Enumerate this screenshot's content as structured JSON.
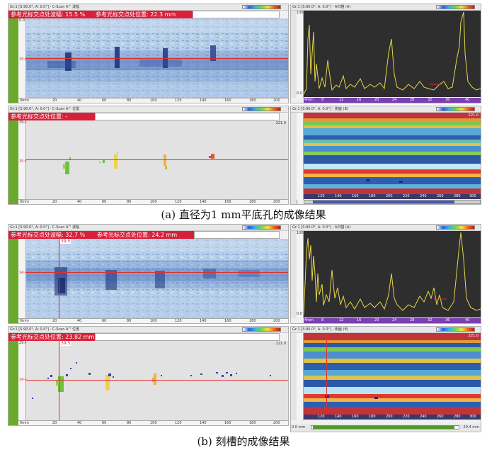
{
  "caption_a": "(a) 直径为1 mm平底孔的成像结果",
  "caption_b": "(b) 刻槽的成像结果",
  "panel_a_cscan": {
    "title": "Gr:1 [S:90.0°, A: 0.0°] - C-Scan A^ 波幅",
    "info_amp": "参考光标交点处波幅: 15.5 %",
    "info_pos": "参考光标交点处位置: 22.3 mm",
    "y_ref": "15.6",
    "y_top": "0.0",
    "x_start": "0mm",
    "x_ticks": [
      "20",
      "40",
      "60",
      "80",
      "100",
      "120",
      "140",
      "160",
      "180",
      "200"
    ]
  },
  "panel_a_ascan": {
    "title": "Gr:1 [S:90.0°, A: 0.0°] - A扫描 (A)",
    "y_top": "100.0",
    "y_bottom": "0.0",
    "x_start": "4mm",
    "x_ticks": [
      "8",
      "12",
      "16",
      "20",
      "24",
      "28",
      "32",
      "36",
      "40"
    ]
  },
  "panel_a_cpos": {
    "title": "Gr:1 [S:90.0°, A: 0.0°] - C-Scan A^ 位置",
    "info_pos": "参考光标交点处位置: -",
    "y_top": "29.4",
    "y_right": "221.0",
    "y_ref": "15.6",
    "x_start": "0mm",
    "x_ticks": [
      "20",
      "40",
      "60",
      "80",
      "100",
      "120",
      "140",
      "160",
      "180",
      "200"
    ]
  },
  "panel_a_bscan": {
    "title": "Gr:1 [S:90.0°, A: 0.0°] - 侧面 (B)",
    "y_right": "221.0",
    "x_ticks": [
      "120",
      "140",
      "160",
      "180",
      "200",
      "220",
      "240",
      "260",
      "280",
      "300"
    ]
  },
  "panel_b_cscan": {
    "title": "Gr:1 [S:90.0°, A: 0.0°] - C-Scan A^ 波幅",
    "info_amp": "参考光标交点处波幅: 32.7 %",
    "info_pos": "参考光标交点处位置: 24.2 mm",
    "y_ref": "14.4",
    "x_ref": "39.5",
    "x_start": "0mm",
    "x_ticks": [
      "20",
      "40",
      "60",
      "80",
      "100",
      "120",
      "140",
      "160",
      "180",
      "200"
    ]
  },
  "panel_b_ascan": {
    "title": "Gr:1 [S:90.0°, A: 0.0°] - A扫描 (A)",
    "y_top": "100.0",
    "y_bottom": "0.0",
    "x_start": "4mm",
    "x_ticks": [
      "8",
      "12",
      "16",
      "20",
      "24",
      "28",
      "32",
      "36",
      "40"
    ]
  },
  "panel_b_cpos": {
    "title": "Gr:1 [S:90.0°, A: 0.0°] - C-Scan A^ 位置",
    "info_pos": "参考光标交点处位置: 23.82 mm",
    "y_top": "29.4",
    "y_right": "221.0",
    "y_ref": "14.4",
    "x_ref": "39.5",
    "x_start": "0mm",
    "x_ticks": [
      "20",
      "40",
      "60",
      "80",
      "100",
      "120",
      "140",
      "160",
      "180",
      "200"
    ]
  },
  "panel_b_bscan": {
    "title": "Gr:1 [S:90.0°, A: 0.0°] - 侧面 (B)",
    "y_right": "221.0",
    "x_ticks": [
      "120",
      "140",
      "160",
      "180",
      "200",
      "220",
      "240",
      "260",
      "280",
      "300"
    ],
    "scroll_left": "0.0 mm",
    "scroll_right": "29.4 mm"
  }
}
